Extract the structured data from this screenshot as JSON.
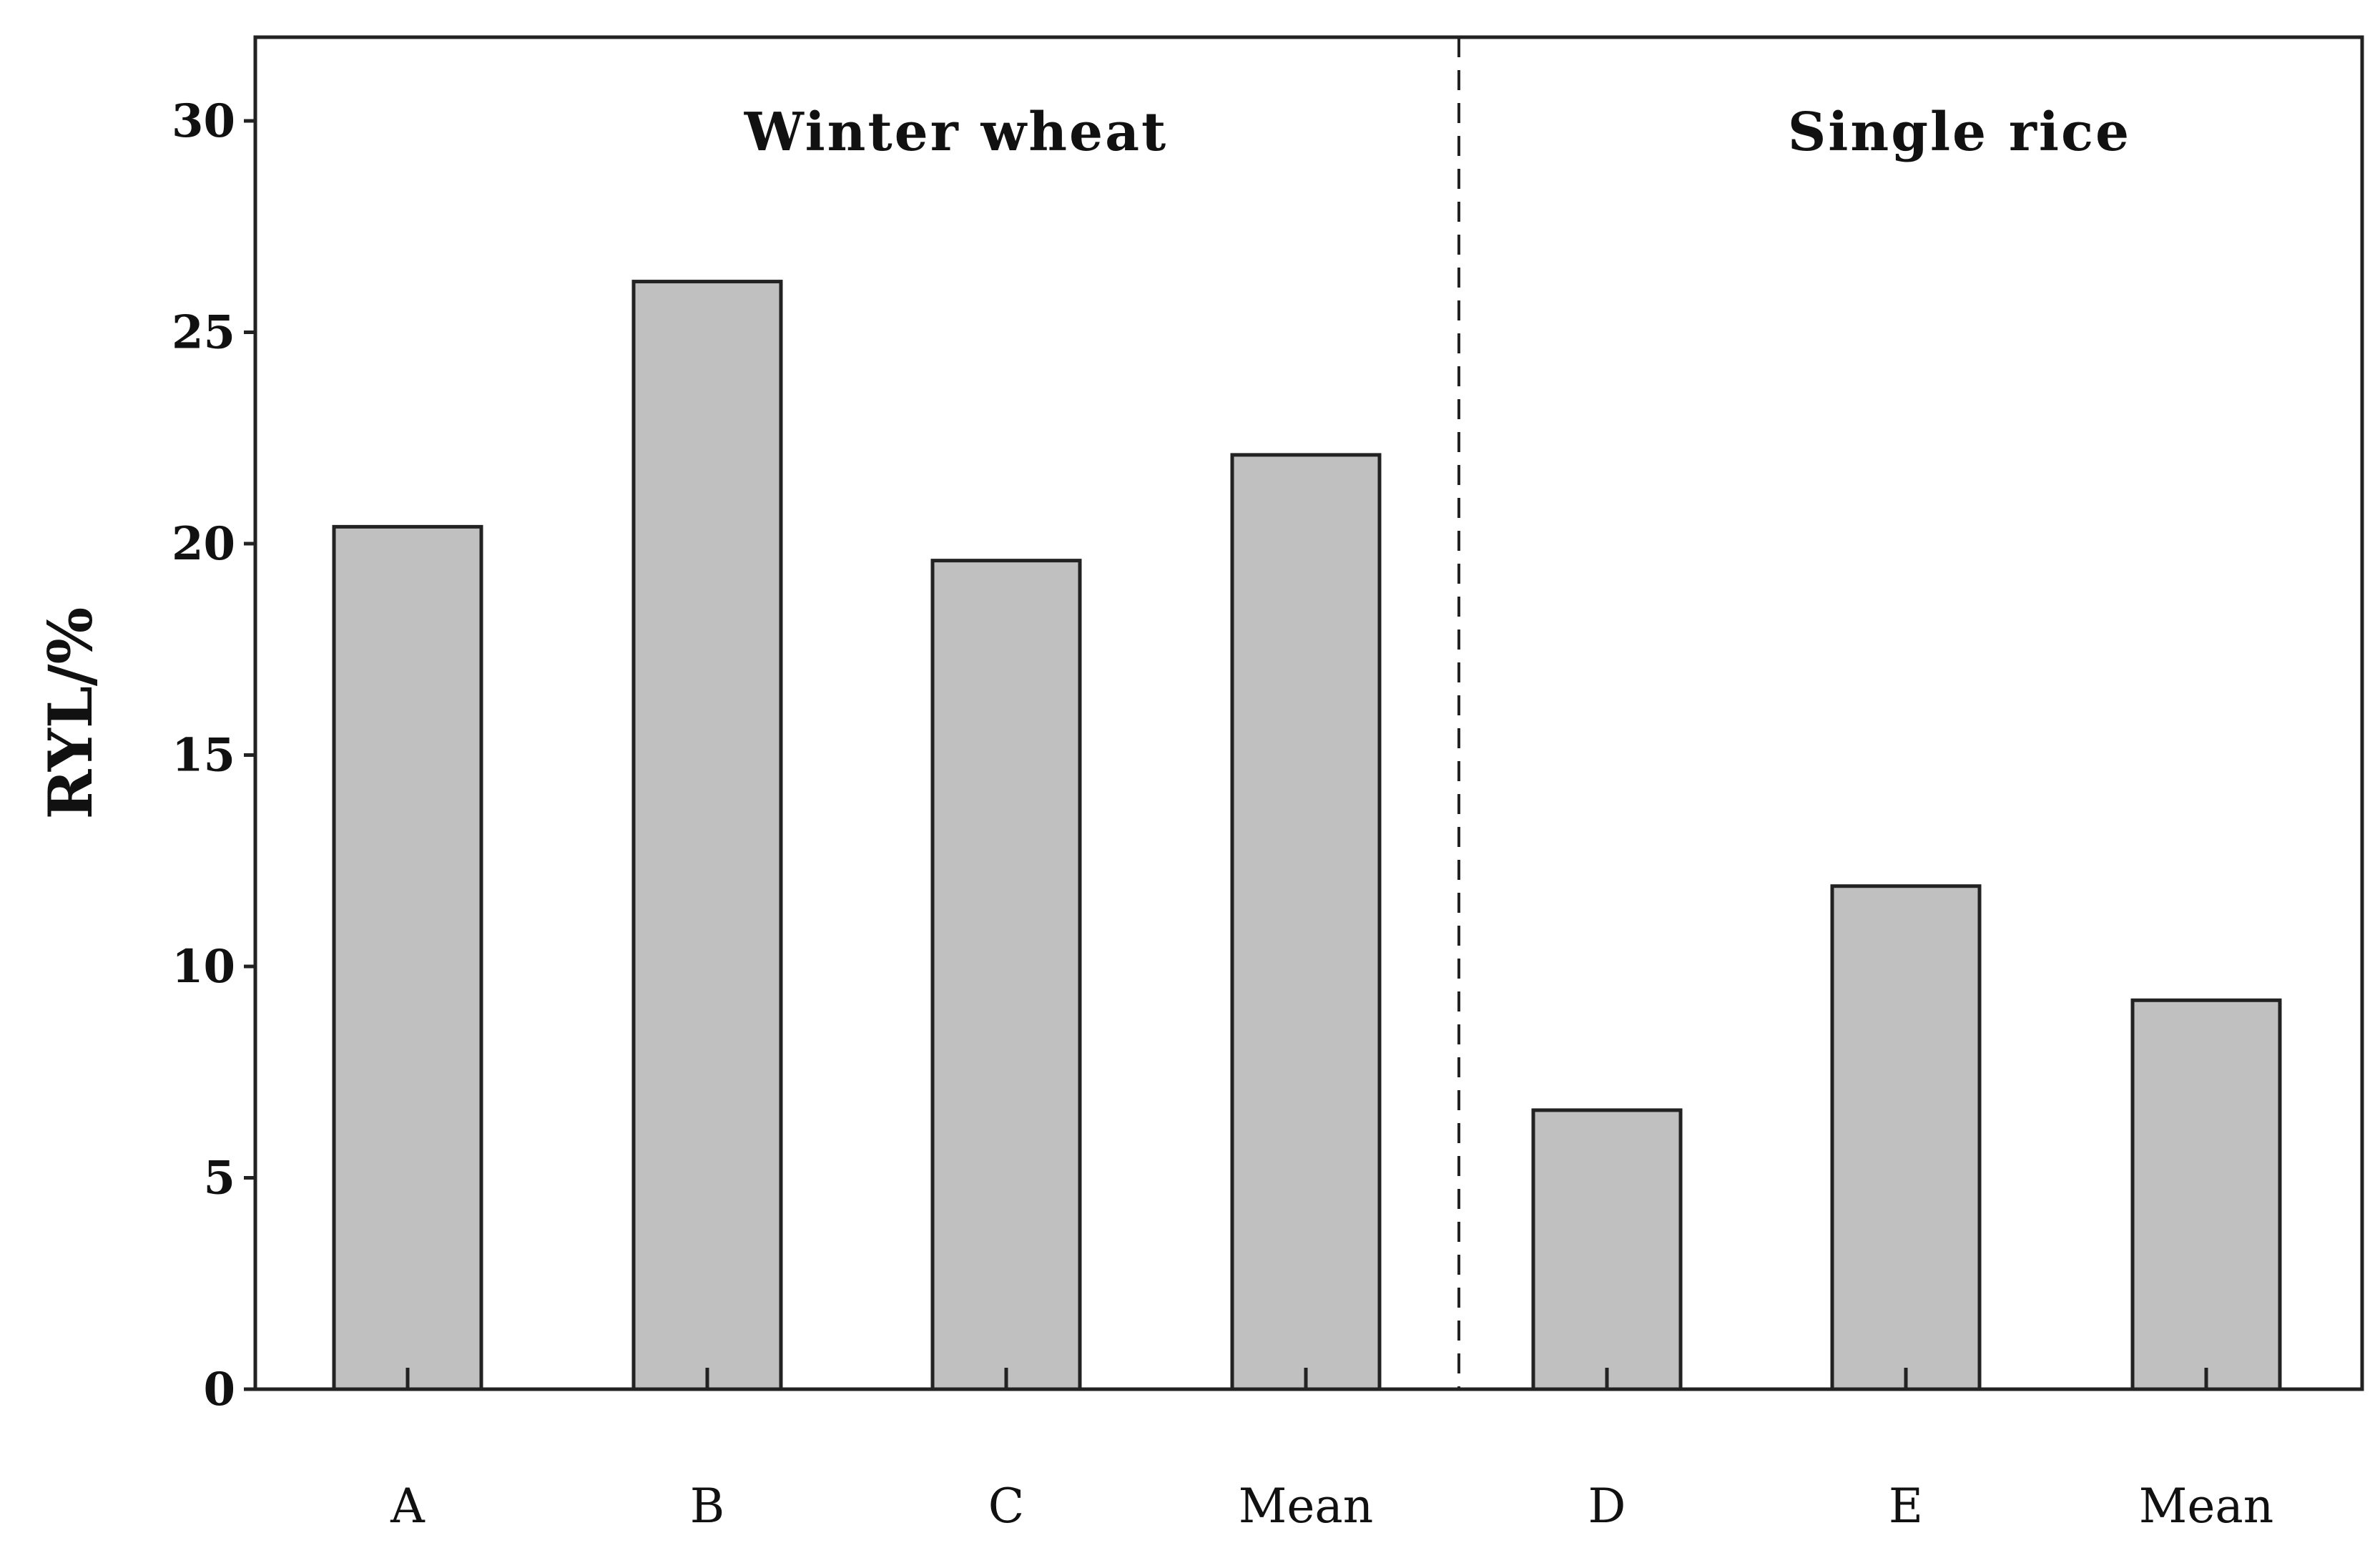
{
  "chart_data": {
    "type": "bar",
    "title": "",
    "xlabel": "",
    "ylabel": "RYL/%",
    "ylim": [
      0,
      32
    ],
    "yticks": [
      0,
      5,
      10,
      15,
      20,
      25,
      30
    ],
    "grid": false,
    "categories": [
      "A",
      "B",
      "C",
      "Mean",
      "D",
      "E",
      "Mean"
    ],
    "values": [
      20.4,
      26.2,
      19.6,
      22.1,
      6.6,
      11.9,
      9.2
    ],
    "groups": [
      {
        "name": "Winter wheat",
        "categories": [
          "A",
          "B",
          "C",
          "Mean"
        ]
      },
      {
        "name": "Single rice",
        "categories": [
          "D",
          "E",
          "Mean"
        ]
      }
    ],
    "bar_color": "#c0c0c0",
    "edge_color": "#222222"
  }
}
